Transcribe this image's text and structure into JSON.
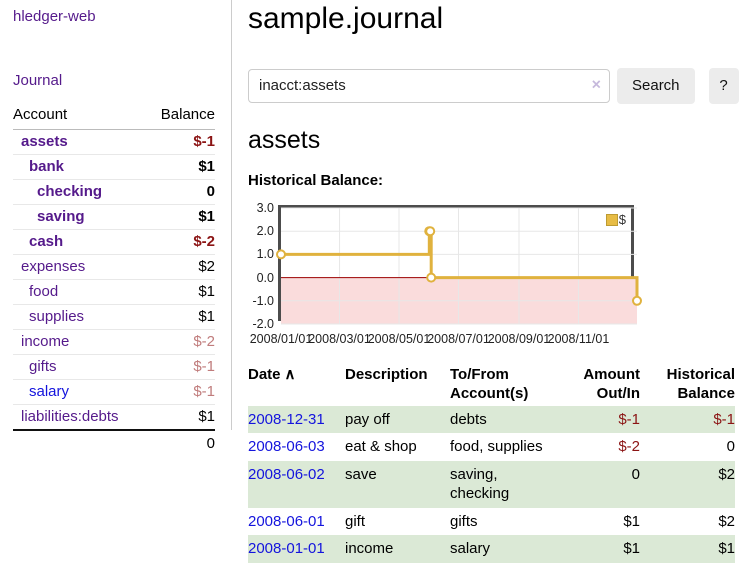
{
  "app_title": "hledger-web",
  "colors": {
    "link_purple": "#551a8b",
    "link_blue": "#1414dd",
    "negative_strong": "#8b1414",
    "negative_soft": "#c07c7c",
    "row_stripe_green": "#dbe9d6",
    "chart_line_gold": "#e0b23e"
  },
  "sidebar": {
    "journal_link": "Journal",
    "accounts": {
      "header_account": "Account",
      "header_balance": "Balance",
      "rows": [
        {
          "name": "assets",
          "balance": "$-1",
          "depth": 1,
          "bold": true,
          "neg": "strong"
        },
        {
          "name": "bank",
          "balance": "$1",
          "depth": 2,
          "bold": true,
          "neg": "none"
        },
        {
          "name": "checking",
          "balance": "0",
          "depth": 3,
          "bold": true,
          "neg": "none"
        },
        {
          "name": "saving",
          "balance": "$1",
          "depth": 3,
          "bold": true,
          "neg": "none"
        },
        {
          "name": "cash",
          "balance": "$-2",
          "depth": 2,
          "bold": true,
          "neg": "strong"
        },
        {
          "name": "expenses",
          "balance": "$2",
          "depth": 1,
          "bold": false,
          "neg": "none"
        },
        {
          "name": "food",
          "balance": "$1",
          "depth": 2,
          "bold": false,
          "neg": "none"
        },
        {
          "name": "supplies",
          "balance": "$1",
          "depth": 2,
          "bold": false,
          "neg": "none"
        },
        {
          "name": "income",
          "balance": "$-2",
          "depth": 1,
          "bold": false,
          "neg": "soft"
        },
        {
          "name": "gifts",
          "balance": "$-1",
          "depth": 2,
          "bold": false,
          "neg": "soft"
        },
        {
          "name": "salary",
          "balance": "$-1",
          "depth": 2,
          "bold": false,
          "neg": "soft",
          "link": "blue"
        },
        {
          "name": "liabilities:debts",
          "balance": "$1",
          "depth": 1,
          "bold": false,
          "neg": "none"
        }
      ],
      "total": "0"
    }
  },
  "main": {
    "title": "sample.journal",
    "search": {
      "value": "inacct:assets",
      "clear_icon": "×",
      "search_button": "Search",
      "help_button": "?"
    },
    "heading": "assets",
    "chart_label": "Historical Balance:"
  },
  "chart_data": {
    "type": "line",
    "step": true,
    "title": "Historical Balance",
    "series": [
      {
        "name": "$",
        "points": [
          [
            "2008-01-01",
            1
          ],
          [
            "2008-06-01",
            2
          ],
          [
            "2008-06-02",
            2
          ],
          [
            "2008-06-03",
            0
          ],
          [
            "2008-12-31",
            -1
          ]
        ]
      }
    ],
    "ylim": [
      -2,
      3
    ],
    "yticks": [
      {
        "value": 3,
        "label": "3.0"
      },
      {
        "value": 2,
        "label": "2.0"
      },
      {
        "value": 1,
        "label": "1.0"
      },
      {
        "value": 0,
        "label": "0.0"
      },
      {
        "value": -1,
        "label": "-1.0"
      },
      {
        "value": -2,
        "label": "-2.0"
      }
    ],
    "xticks": [
      {
        "date": "2008-01-01",
        "label": "2008/01/01"
      },
      {
        "date": "2008-03-01",
        "label": "2008/03/01"
      },
      {
        "date": "2008-05-01",
        "label": "2008/05/01"
      },
      {
        "date": "2008-07-01",
        "label": "2008/07/01"
      },
      {
        "date": "2008-09-01",
        "label": "2008/09/01"
      },
      {
        "date": "2008-11-01",
        "label": "2008/11/01"
      }
    ],
    "legend": {
      "label": "$",
      "position": "top-right"
    },
    "grid": true,
    "style": {
      "line_color": "#e0b23e",
      "marker_fill": "#ffffff",
      "negative_region_fill": "#fadcdc",
      "zero_line_color": "#9e0000",
      "grid_color": "#e7e7e7",
      "border_color": "#4c4c4c"
    }
  },
  "register": {
    "headers": {
      "date": "Date",
      "sort_icon": "∧",
      "description": "Description",
      "accounts": "To/From Account(s)",
      "amount": "Amount Out/In",
      "balance": "Historical Balance"
    },
    "rows": [
      {
        "date": "2008-12-31",
        "description": "pay off",
        "accounts": "debts",
        "amount": "$-1",
        "balance": "$-1"
      },
      {
        "date": "2008-06-03",
        "description": "eat & shop",
        "accounts": "food, supplies",
        "amount": "$-2",
        "balance": "0"
      },
      {
        "date": "2008-06-02",
        "description": "save",
        "accounts": "saving, checking",
        "amount": "0",
        "balance": "$2"
      },
      {
        "date": "2008-06-01",
        "description": "gift",
        "accounts": "gifts",
        "amount": "$1",
        "balance": "$2"
      },
      {
        "date": "2008-01-01",
        "description": "income",
        "accounts": "salary",
        "amount": "$1",
        "balance": "$1"
      }
    ]
  }
}
